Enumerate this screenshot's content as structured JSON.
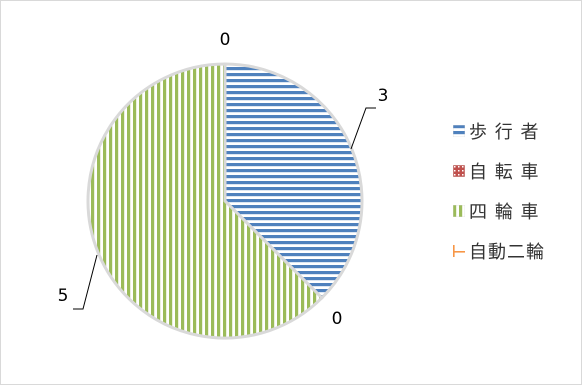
{
  "chart_data": {
    "type": "pie",
    "categories": [
      "歩 行 者",
      "自 転 車",
      "四 輪 車",
      "自動二輪"
    ],
    "values": [
      3,
      0,
      5,
      0
    ],
    "data_labels": [
      "3",
      "0",
      "5",
      "0"
    ],
    "legend_position": "right",
    "colors": [
      "#4f81bd",
      "#c0504d",
      "#9bbb59",
      "#f79646"
    ],
    "fill_patterns": [
      "horizontal-stripes",
      "dots",
      "vertical-stripes",
      "corner-lines"
    ],
    "slice_border_color": "#d9d9d9"
  }
}
